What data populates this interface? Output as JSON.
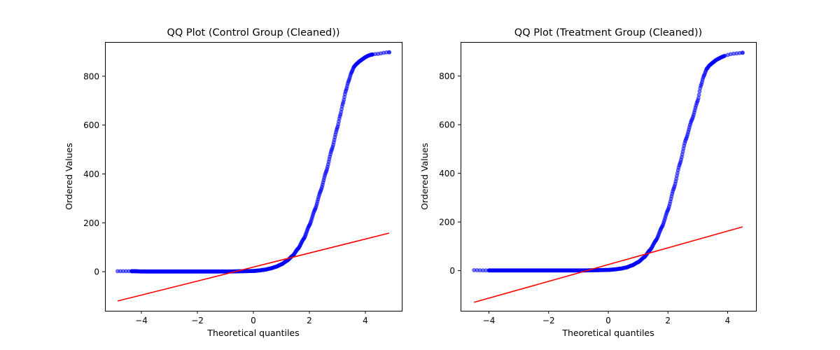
{
  "chart_data": [
    {
      "type": "scatter",
      "title": "QQ Plot (Control Group (Cleaned))",
      "xlabel": "Theoretical quantiles",
      "ylabel": "Ordered Values",
      "xlim": [
        -5.3,
        5.3
      ],
      "ylim": [
        -160,
        940
      ],
      "xticks": [
        -4,
        -2,
        0,
        2,
        4
      ],
      "xtick_labels": [
        "−4",
        "−2",
        "0",
        "2",
        "4"
      ],
      "yticks": [
        0,
        200,
        400,
        600,
        800
      ],
      "ytick_labels": [
        "0",
        "200",
        "400",
        "600",
        "800"
      ],
      "grid": false,
      "colors": {
        "points": "#0000ff",
        "line": "#ff0000"
      },
      "x_range": [
        -4.85,
        4.85
      ],
      "fit_line": {
        "x": [
          -4.85,
          4.85
        ],
        "y": [
          -120,
          158
        ]
      },
      "series": [
        {
          "x": [
            -4.85,
            -4.6,
            -4.4,
            -4.2,
            -4.0,
            -3.6,
            -3.2,
            -2.8,
            -2.4,
            -2.0,
            -1.6,
            -1.2,
            -0.8,
            -0.4,
            0.0,
            0.2,
            0.4,
            0.6,
            0.8,
            1.0,
            1.2,
            1.4,
            1.6,
            1.8,
            2.0,
            2.2,
            2.4,
            2.6,
            2.8,
            3.0,
            3.1,
            3.2,
            3.3,
            3.4,
            3.5,
            3.6,
            3.7,
            3.8,
            3.9,
            4.0,
            4.1,
            4.2,
            4.3,
            4.4,
            4.5,
            4.6,
            4.8
          ],
          "y": [
            2,
            2,
            2,
            2,
            1,
            1,
            1,
            1,
            1,
            1,
            1,
            1,
            1,
            2,
            3,
            5,
            8,
            13,
            20,
            30,
            45,
            65,
            95,
            135,
            190,
            255,
            330,
            410,
            500,
            590,
            640,
            690,
            740,
            780,
            815,
            840,
            852,
            862,
            870,
            878,
            884,
            888,
            890,
            891,
            892,
            895,
            898
          ]
        }
      ]
    },
    {
      "type": "scatter",
      "title": "QQ Plot (Treatment Group (Cleaned))",
      "xlabel": "Theoretical quantiles",
      "ylabel": "Ordered Values",
      "xlim": [
        -4.95,
        4.95
      ],
      "ylim": [
        -165,
        940
      ],
      "xticks": [
        -4,
        -2,
        0,
        2,
        4
      ],
      "xtick_labels": [
        "−4",
        "−2",
        "0",
        "2",
        "4"
      ],
      "yticks": [
        0,
        200,
        400,
        600,
        800
      ],
      "ytick_labels": [
        "0",
        "200",
        "400",
        "600",
        "800"
      ],
      "grid": false,
      "colors": {
        "points": "#0000ff",
        "line": "#ff0000"
      },
      "x_range": [
        -4.5,
        4.5
      ],
      "fit_line": {
        "x": [
          -4.5,
          4.5
        ],
        "y": [
          -130,
          180
        ]
      },
      "series": [
        {
          "x": [
            -4.5,
            -4.2,
            -4.0,
            -3.6,
            -3.2,
            -2.8,
            -2.4,
            -2.0,
            -1.6,
            -1.2,
            -0.8,
            -0.4,
            0.0,
            0.2,
            0.4,
            0.6,
            0.8,
            1.0,
            1.2,
            1.4,
            1.6,
            1.8,
            2.0,
            2.2,
            2.4,
            2.6,
            2.8,
            3.0,
            3.1,
            3.2,
            3.3,
            3.4,
            3.5,
            3.6,
            3.7,
            3.8,
            3.9,
            4.0,
            4.1,
            4.2,
            4.3,
            4.5
          ],
          "y": [
            2,
            1,
            1,
            1,
            1,
            1,
            1,
            1,
            1,
            1,
            1,
            2,
            3,
            5,
            8,
            13,
            22,
            35,
            55,
            85,
            125,
            180,
            250,
            340,
            440,
            540,
            620,
            700,
            760,
            800,
            830,
            845,
            855,
            865,
            872,
            878,
            883,
            887,
            890,
            892,
            893,
            896
          ]
        }
      ]
    }
  ]
}
